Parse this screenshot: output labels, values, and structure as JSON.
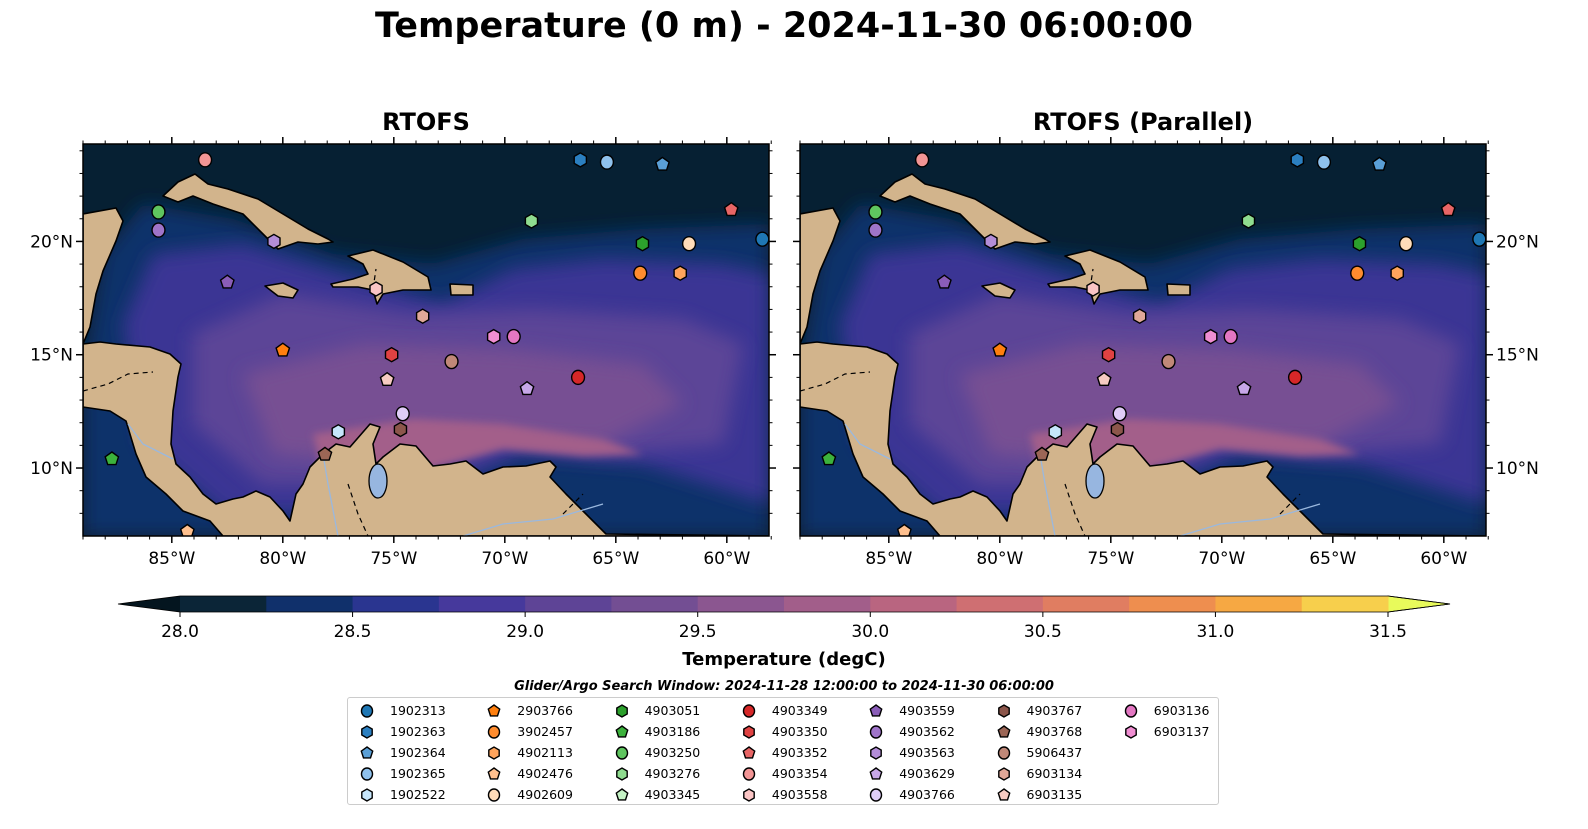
{
  "title": "Temperature (0 m) - 2024-11-30 06:00:00",
  "panels": [
    {
      "title": "RTOFS"
    },
    {
      "title": "RTOFS (Parallel)"
    }
  ],
  "map": {
    "lon_range": [
      -89.0,
      -58.1
    ],
    "lat_range": [
      7.0,
      24.3
    ],
    "xticks": [
      {
        "value": -85,
        "label": "85°W"
      },
      {
        "value": -80,
        "label": "80°W"
      },
      {
        "value": -75,
        "label": "75°W"
      },
      {
        "value": -70,
        "label": "70°W"
      },
      {
        "value": -65,
        "label": "65°W"
      },
      {
        "value": -60,
        "label": "60°W"
      }
    ],
    "yticks": [
      {
        "value": 10,
        "label": "10°N"
      },
      {
        "value": 15,
        "label": "15°N"
      },
      {
        "value": 20,
        "label": "20°N"
      }
    ],
    "land_color": "#d2b48c",
    "lake_color": "#97b6e0"
  },
  "colorbar": {
    "label": "Temperature (degC)",
    "min": 28.0,
    "max": 31.5,
    "step": 0.25,
    "ticks": [
      "28.0",
      "28.5",
      "29.0",
      "29.5",
      "30.0",
      "30.5",
      "31.0",
      "31.5"
    ],
    "colors": [
      "#0b2537",
      "#10306b",
      "#2a3590",
      "#46399c",
      "#5e4496",
      "#734e93",
      "#8b5690",
      "#a25e8a",
      "#b96580",
      "#cf6f72",
      "#e07d61",
      "#ee8e4f",
      "#f6a843",
      "#f7cf4c"
    ],
    "under_color": "#04151f",
    "over_color": "#e8fa5b"
  },
  "legend": {
    "title": "Glider/Argo Search Window: 2024-11-28 12:00:00 to 2024-11-30 06:00:00",
    "floats": [
      {
        "id": "1902313",
        "shape": "circle",
        "color": "#1f77b4",
        "lon": -58.4,
        "lat": 20.1
      },
      {
        "id": "1902363",
        "shape": "hexagon",
        "color": "#2b7fc0",
        "lon": -66.6,
        "lat": 23.6
      },
      {
        "id": "1902364",
        "shape": "pentagon",
        "color": "#5a9fd6",
        "lon": -62.9,
        "lat": 23.4
      },
      {
        "id": "1902365",
        "shape": "circle",
        "color": "#8fc1ec",
        "lon": -65.4,
        "lat": 23.5
      },
      {
        "id": "1902522",
        "shape": "hexagon",
        "color": "#c6e6fb",
        "lon": -77.5,
        "lat": 11.6
      },
      {
        "id": "2903766",
        "shape": "pentagon",
        "color": "#ff7f0e",
        "lon": -80.0,
        "lat": 15.2
      },
      {
        "id": "3902457",
        "shape": "circle",
        "color": "#ff8c2e",
        "lon": -63.9,
        "lat": 18.6
      },
      {
        "id": "4902113",
        "shape": "hexagon",
        "color": "#ffa45c",
        "lon": -62.1,
        "lat": 18.6
      },
      {
        "id": "4902476",
        "shape": "pentagon",
        "color": "#ffc08e",
        "lon": -84.3,
        "lat": 7.2
      },
      {
        "id": "4902609",
        "shape": "circle",
        "color": "#ffdcb9",
        "lon": -61.7,
        "lat": 19.9
      },
      {
        "id": "4903051",
        "shape": "hexagon",
        "color": "#2ca02c",
        "lon": -63.8,
        "lat": 19.9
      },
      {
        "id": "4903186",
        "shape": "pentagon",
        "color": "#3cb23c",
        "lon": -87.7,
        "lat": 10.4
      },
      {
        "id": "4903250",
        "shape": "circle",
        "color": "#5fc55f",
        "lon": -85.6,
        "lat": 21.3
      },
      {
        "id": "4903276",
        "shape": "hexagon",
        "color": "#8fdc8f",
        "lon": -68.8,
        "lat": 20.9
      },
      {
        "id": "4903345",
        "shape": "pentagon",
        "color": "#c5f3c5",
        "lon": null,
        "lat": null
      },
      {
        "id": "4903349",
        "shape": "circle",
        "color": "#d62728",
        "lon": -66.7,
        "lat": 14.0
      },
      {
        "id": "4903350",
        "shape": "hexagon",
        "color": "#e04242",
        "lon": -75.1,
        "lat": 15.0
      },
      {
        "id": "4903352",
        "shape": "pentagon",
        "color": "#e86565",
        "lon": -59.8,
        "lat": 21.4
      },
      {
        "id": "4903354",
        "shape": "circle",
        "color": "#f29595",
        "lon": -83.5,
        "lat": 23.6
      },
      {
        "id": "4903558",
        "shape": "hexagon",
        "color": "#fbc5c5",
        "lon": -75.8,
        "lat": 17.9
      },
      {
        "id": "4903559",
        "shape": "pentagon",
        "color": "#8a5db8",
        "lon": -82.5,
        "lat": 18.2
      },
      {
        "id": "4903562",
        "shape": "circle",
        "color": "#9f74c9",
        "lon": -85.6,
        "lat": 20.5
      },
      {
        "id": "4903563",
        "shape": "hexagon",
        "color": "#b38dd8",
        "lon": -80.4,
        "lat": 20.0
      },
      {
        "id": "4903629",
        "shape": "pentagon",
        "color": "#c7a7e8",
        "lon": -69.0,
        "lat": 13.5
      },
      {
        "id": "4903766",
        "shape": "circle",
        "color": "#e0cdf7",
        "lon": -74.6,
        "lat": 12.4
      },
      {
        "id": "4903767",
        "shape": "hexagon",
        "color": "#8c564b",
        "lon": -74.7,
        "lat": 11.7
      },
      {
        "id": "4903768",
        "shape": "pentagon",
        "color": "#9c6656",
        "lon": -78.1,
        "lat": 10.6
      },
      {
        "id": "5906437",
        "shape": "circle",
        "color": "#c08878",
        "lon": -72.4,
        "lat": 14.7
      },
      {
        "id": "6903134",
        "shape": "hexagon",
        "color": "#e0a898",
        "lon": -73.7,
        "lat": 16.7
      },
      {
        "id": "6903135",
        "shape": "pentagon",
        "color": "#f7cbc2",
        "lon": -75.3,
        "lat": 13.9
      },
      {
        "id": "6903136",
        "shape": "circle",
        "color": "#e377c2",
        "lon": -69.6,
        "lat": 15.8
      },
      {
        "id": "6903137",
        "shape": "hexagon",
        "color": "#f08ed2",
        "lon": -70.5,
        "lat": 15.8
      }
    ]
  }
}
